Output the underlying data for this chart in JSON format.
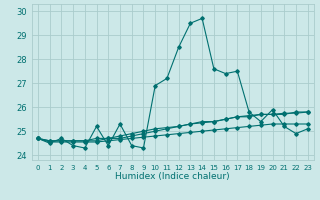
{
  "xlabel": "Humidex (Indice chaleur)",
  "background_color": "#cce8e8",
  "grid_color": "#aacccc",
  "line_color": "#007070",
  "xlim": [
    -0.5,
    23.5
  ],
  "ylim": [
    23.8,
    30.3
  ],
  "yticks": [
    24,
    25,
    26,
    27,
    28,
    29,
    30
  ],
  "xticks": [
    0,
    1,
    2,
    3,
    4,
    5,
    6,
    7,
    8,
    9,
    10,
    11,
    12,
    13,
    14,
    15,
    16,
    17,
    18,
    19,
    20,
    21,
    22,
    23
  ],
  "series1": [
    24.7,
    24.5,
    24.7,
    24.4,
    24.3,
    25.2,
    24.4,
    25.3,
    24.4,
    24.3,
    26.9,
    27.2,
    28.5,
    29.5,
    29.7,
    27.6,
    27.4,
    27.5,
    25.8,
    25.4,
    25.9,
    25.2,
    24.9,
    25.1
  ],
  "series2": [
    24.7,
    24.6,
    24.6,
    24.6,
    24.6,
    24.6,
    24.7,
    24.7,
    24.8,
    24.9,
    25.0,
    25.1,
    25.2,
    25.3,
    25.4,
    25.4,
    25.5,
    25.6,
    25.6,
    25.7,
    25.7,
    25.7,
    25.8,
    25.8
  ],
  "series3": [
    24.7,
    24.6,
    24.6,
    24.6,
    24.6,
    24.7,
    24.7,
    24.8,
    24.9,
    25.0,
    25.1,
    25.15,
    25.2,
    25.3,
    25.35,
    25.4,
    25.5,
    25.6,
    25.65,
    25.7,
    25.7,
    25.75,
    25.75,
    25.8
  ],
  "series4": [
    24.7,
    24.55,
    24.55,
    24.55,
    24.55,
    24.55,
    24.6,
    24.65,
    24.7,
    24.75,
    24.8,
    24.85,
    24.9,
    24.95,
    25.0,
    25.05,
    25.1,
    25.15,
    25.2,
    25.25,
    25.3,
    25.3,
    25.3,
    25.3
  ]
}
